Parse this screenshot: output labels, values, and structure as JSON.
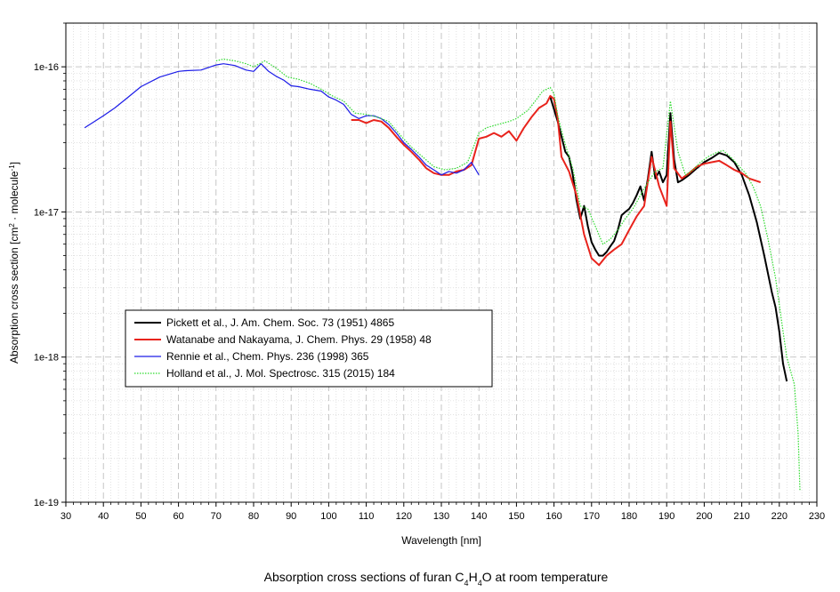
{
  "chart_data": {
    "type": "line",
    "caption_parts": [
      "Absorption cross sections of furan C",
      "4",
      "H",
      "4",
      "O at room temperature"
    ],
    "xlabel": "Wavelength [nm]",
    "ylabel_parts": [
      "Absorption cross section [cm",
      "2",
      " · molecule",
      "-1",
      "]"
    ],
    "xlim": [
      30,
      230
    ],
    "ylim": [
      1e-19,
      2e-16
    ],
    "yscale": "log",
    "grid": true,
    "legend_position": "center-left",
    "x_ticks": [
      30,
      40,
      50,
      60,
      70,
      80,
      90,
      100,
      110,
      120,
      130,
      140,
      150,
      160,
      170,
      180,
      190,
      200,
      210,
      220,
      230
    ],
    "x_tick_labels": [
      "30",
      "40",
      "50",
      "60",
      "70",
      "80",
      "90",
      "100",
      "110",
      "120",
      "130",
      "140",
      "150",
      "160",
      "170",
      "180",
      "190",
      "200",
      "210",
      "220",
      "230"
    ],
    "y_ticks": [
      1e-19,
      1e-18,
      1e-17,
      1e-16
    ],
    "y_tick_labels": [
      "1e-19",
      "1e-18",
      "1e-17",
      "1e-16"
    ],
    "series": [
      {
        "name": "Pickett et al., J. Am. Chem. Soc. 73 (1951) 4865",
        "color": "#000000",
        "width": 2,
        "dash": "",
        "x": [
          159,
          161,
          163,
          164,
          165,
          166,
          167,
          168,
          169,
          170,
          171,
          172,
          173,
          174,
          175,
          176,
          177,
          178,
          179,
          180,
          181,
          182,
          183,
          184,
          185,
          186,
          187,
          188,
          189,
          190,
          191,
          192,
          193,
          194,
          196,
          198,
          200,
          202,
          204,
          206,
          208,
          210,
          212,
          214,
          216,
          218,
          219,
          220,
          221,
          222
        ],
        "y": [
          6.2e-17,
          4.2e-17,
          2.6e-17,
          2.4e-17,
          1.8e-17,
          1.2e-17,
          9e-18,
          1.1e-17,
          8e-18,
          6.2e-18,
          5.5e-18,
          5e-18,
          5e-18,
          5.3e-18,
          5.8e-18,
          6.3e-18,
          7.5e-18,
          9.5e-18,
          1e-17,
          1.05e-17,
          1.15e-17,
          1.3e-17,
          1.5e-17,
          1.2e-17,
          1.7e-17,
          2.6e-17,
          1.7e-17,
          1.9e-17,
          1.6e-17,
          1.8e-17,
          4.8e-17,
          2.3e-17,
          1.6e-17,
          1.65e-17,
          1.8e-17,
          2e-17,
          2.2e-17,
          2.35e-17,
          2.55e-17,
          2.45e-17,
          2.2e-17,
          1.8e-17,
          1.3e-17,
          8.5e-18,
          5e-18,
          2.8e-18,
          2.2e-18,
          1.5e-18,
          9e-19,
          6.8e-19
        ]
      },
      {
        "name": "Watanabe and Nakayama, J. Chem. Phys. 29 (1958) 48",
        "color": "#e8231c",
        "width": 2,
        "dash": "",
        "x": [
          106,
          108,
          110,
          112,
          114,
          116,
          118,
          120,
          122,
          124,
          126,
          128,
          130,
          132,
          134,
          136,
          138,
          140,
          142,
          144,
          146,
          148,
          150,
          152,
          154,
          156,
          158,
          159,
          160,
          161,
          162,
          164,
          166,
          168,
          170,
          172,
          174,
          176,
          178,
          180,
          182,
          184,
          186,
          188,
          190,
          191,
          192,
          194,
          196,
          198,
          200,
          202,
          204,
          206,
          208,
          210,
          212,
          215
        ],
        "y": [
          4.3e-17,
          4.3e-17,
          4.1e-17,
          4.3e-17,
          4.2e-17,
          3.8e-17,
          3.3e-17,
          2.9e-17,
          2.6e-17,
          2.3e-17,
          2e-17,
          1.85e-17,
          1.8e-17,
          1.8e-17,
          1.9e-17,
          1.95e-17,
          2.1e-17,
          3.2e-17,
          3.3e-17,
          3.5e-17,
          3.3e-17,
          3.6e-17,
          3.1e-17,
          3.8e-17,
          4.5e-17,
          5.2e-17,
          5.6e-17,
          6.3e-17,
          6e-17,
          4.4e-17,
          2.4e-17,
          1.9e-17,
          1.3e-17,
          7e-18,
          4.8e-18,
          4.3e-18,
          5e-18,
          5.5e-18,
          6e-18,
          7.5e-18,
          9.3e-18,
          1.1e-17,
          2.4e-17,
          1.5e-17,
          1.1e-17,
          4.2e-17,
          2e-17,
          1.7e-17,
          1.85e-17,
          2.05e-17,
          2.15e-17,
          2.2e-17,
          2.25e-17,
          2.1e-17,
          1.95e-17,
          1.85e-17,
          1.7e-17,
          1.6e-17
        ]
      },
      {
        "name": "Rennie et al., Chem. Phys. 236 (1998) 365",
        "color": "#1c1ce8",
        "width": 1.2,
        "dash": "",
        "x": [
          35,
          37,
          40,
          43,
          46,
          50,
          55,
          60,
          62,
          66,
          70,
          72,
          75,
          78,
          80,
          82,
          84,
          86,
          88,
          90,
          92,
          95,
          98,
          100,
          102,
          104,
          106,
          108,
          110,
          112,
          114,
          116,
          118,
          120,
          122,
          124,
          126,
          128,
          130,
          132,
          134,
          136,
          138,
          140
        ],
        "y": [
          3.8e-17,
          4.1e-17,
          4.6e-17,
          5.2e-17,
          6e-17,
          7.3e-17,
          8.5e-17,
          9.3e-17,
          9.4e-17,
          9.5e-17,
          1.03e-16,
          1.05e-16,
          1.02e-16,
          9.5e-17,
          9.3e-17,
          1.05e-16,
          9.3e-17,
          8.6e-17,
          8.1e-17,
          7.4e-17,
          7.3e-17,
          7e-17,
          6.8e-17,
          6.2e-17,
          5.9e-17,
          5.5e-17,
          4.7e-17,
          4.4e-17,
          4.6e-17,
          4.6e-17,
          4.4e-17,
          4e-17,
          3.5e-17,
          3e-17,
          2.7e-17,
          2.4e-17,
          2.1e-17,
          1.95e-17,
          1.8e-17,
          1.9e-17,
          1.85e-17,
          1.95e-17,
          2.2e-17,
          1.8e-17
        ]
      },
      {
        "name": "Holland et al., J. Mol. Spectrosc. 315 (2015) 184",
        "color": "#2ddb2d",
        "width": 1.2,
        "dash": "1.5 1.5",
        "x": [
          70,
          72,
          75,
          78,
          80,
          83,
          86,
          89,
          92,
          95,
          98,
          101,
          104,
          107,
          110,
          113,
          116,
          119,
          122,
          125,
          128,
          131,
          134,
          137,
          140,
          142,
          145,
          148,
          150,
          153,
          155,
          157,
          159,
          160,
          161,
          163,
          165,
          167,
          169,
          171,
          173,
          175,
          177,
          179,
          181,
          183,
          185,
          187,
          189,
          191,
          193,
          195,
          197,
          199,
          201,
          203,
          205,
          207,
          209,
          211,
          213,
          215,
          217,
          219,
          220,
          221,
          222,
          223,
          224,
          225,
          225.5
        ],
        "y": [
          1.1e-16,
          1.13e-16,
          1.1e-16,
          1.05e-16,
          1e-16,
          1.1e-16,
          9.8e-17,
          8.5e-17,
          8.2e-17,
          7.7e-17,
          7e-17,
          6.3e-17,
          5.8e-17,
          4.8e-17,
          4.7e-17,
          4.5e-17,
          4.2e-17,
          3.4e-17,
          2.8e-17,
          2.4e-17,
          2.05e-17,
          1.95e-17,
          2e-17,
          2.2e-17,
          3.5e-17,
          3.8e-17,
          4e-17,
          4.2e-17,
          4.4e-17,
          5e-17,
          5.8e-17,
          6.8e-17,
          7.2e-17,
          6.5e-17,
          4.6e-17,
          2.9e-17,
          2e-17,
          1.1e-17,
          1.05e-17,
          8e-18,
          6e-18,
          6.5e-18,
          7.5e-18,
          9e-18,
          1.05e-17,
          1.3e-17,
          1.6e-17,
          1.9e-17,
          2e-17,
          5.8e-17,
          2.6e-17,
          1.8e-17,
          1.95e-17,
          2.2e-17,
          2.4e-17,
          2.55e-17,
          2.65e-17,
          2.4e-17,
          2.1e-17,
          1.85e-17,
          1.5e-17,
          1.1e-17,
          6.5e-18,
          3.5e-18,
          2.3e-18,
          1.5e-18,
          1e-18,
          8e-19,
          6.5e-19,
          3e-19,
          1.2e-19
        ]
      }
    ]
  }
}
